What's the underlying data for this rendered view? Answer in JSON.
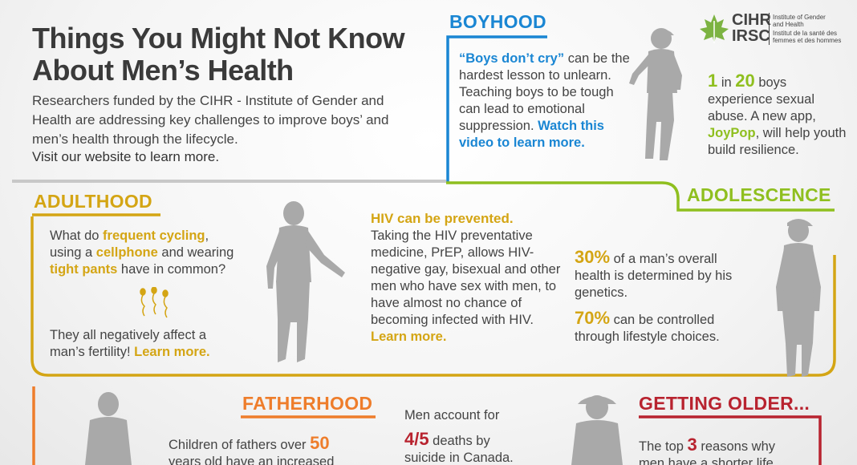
{
  "title": {
    "line1": "Things You Might Not Know",
    "line2": "About Men’s Health"
  },
  "intro": {
    "text": "Researchers funded by the CIHR - Institute of Gender and Health are addressing key challenges to improve boys’ and men’s health through the lifecycle.",
    "cta": "Visit our website to learn more."
  },
  "logo": {
    "abbr_en": "CIHR",
    "abbr_fr": "IRSC",
    "name_en_1": "Institute of Gender",
    "name_en_2": "and Health",
    "name_fr_1": "Institut de la santé des",
    "name_fr_2": "femmes et des hommes"
  },
  "boyhood": {
    "heading": "BOYHOOD",
    "quote": "“Boys don’t cry”",
    "text_1": " can be the hardest lesson to unlearn. Teaching boys to be tough can lead to emotional suppression.",
    "link": "Watch this video to learn more."
  },
  "boyhood_stat": {
    "num1": "1",
    "in": " in ",
    "num2": "20",
    "text_1": " boys experience sexual abuse. A new app, ",
    "app": "JoyPop",
    "text_2": ", will help youth build resilience."
  },
  "adolescence": {
    "heading": "ADOLESCENCE",
    "stat1_num": "30%",
    "stat1_text": " of a man’s overall health is determined by his genetics.",
    "stat2_num": "70%",
    "stat2_text": " can be controlled through lifestyle choices."
  },
  "adulthood": {
    "heading": "ADULTHOOD",
    "q_1": "What do ",
    "q_hl1": "frequent cycling",
    "q_2": ", using a ",
    "q_hl2": "cellphone",
    "q_3": " and wearing ",
    "q_hl3": "tight pants",
    "q_4": " have in common?",
    "a_1": "They all negatively affect a man’s fertility! ",
    "a_link": "Learn more."
  },
  "hiv": {
    "heading": "HIV can be prevented.",
    "text": "Taking the HIV preventative medicine, PrEP, allows HIV-negative gay, bisexual and other men who have sex with men, to have almost no chance of becoming infected with HIV. ",
    "link": "Learn more."
  },
  "fatherhood": {
    "heading": "FATHERHOOD",
    "text_1": "Children of fathers over ",
    "num": "50",
    "text_2": " years old have an increased"
  },
  "suicide": {
    "text_1": "Men account for",
    "num": "4/5",
    "text_2": " deaths by",
    "text_3": "suicide in Canada."
  },
  "getting_older": {
    "heading": "GETTING OLDER...",
    "text_1": "The top ",
    "num": "3",
    "text_2": " reasons why",
    "text_3": "men have a shorter life"
  },
  "colors": {
    "blue": "#1a86d3",
    "green": "#8fbf1f",
    "gold": "#d4a514",
    "orange": "#ee7d2b",
    "red": "#b8232f",
    "figure": "#a9a9a9"
  }
}
